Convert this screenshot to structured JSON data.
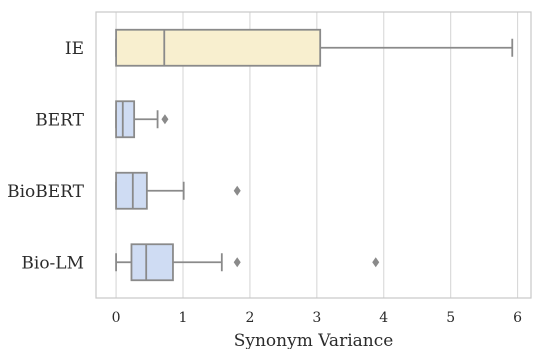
{
  "chart_data": {
    "type": "boxplot",
    "orientation": "horizontal",
    "xlabel": "Synonym Variance",
    "ylabel": "",
    "xlim": [
      -0.3,
      6.2
    ],
    "xticks": [
      0,
      1,
      2,
      3,
      4,
      5,
      6
    ],
    "grid": {
      "vertical": true,
      "horizontal": false
    },
    "colors": {
      "ie_box": "#f8efcf",
      "lm_box": "#cfdcf3",
      "line": "#8a8a8a",
      "grid": "#d4d4d4",
      "frame": "#c8c8c8"
    },
    "categories": [
      "IE",
      "BERT",
      "BioBERT",
      "Bio-LM"
    ],
    "boxes": [
      {
        "label": "IE",
        "color": "#f8efcf",
        "whislo": 0.0,
        "q1": 0.0,
        "med": 0.72,
        "q3": 3.05,
        "whishi": 5.92,
        "fliers": []
      },
      {
        "label": "BERT",
        "color": "#cfdcf3",
        "whislo": 0.0,
        "q1": 0.0,
        "med": 0.1,
        "q3": 0.27,
        "whishi": 0.62,
        "fliers": [
          0.73
        ]
      },
      {
        "label": "BioBERT",
        "color": "#cfdcf3",
        "whislo": 0.0,
        "q1": 0.0,
        "med": 0.25,
        "q3": 0.46,
        "whishi": 1.01,
        "fliers": [
          1.81
        ]
      },
      {
        "label": "Bio-LM",
        "color": "#cfdcf3",
        "whislo": 0.0,
        "q1": 0.23,
        "med": 0.45,
        "q3": 0.85,
        "whishi": 1.58,
        "fliers": [
          1.81,
          3.88
        ]
      }
    ]
  }
}
